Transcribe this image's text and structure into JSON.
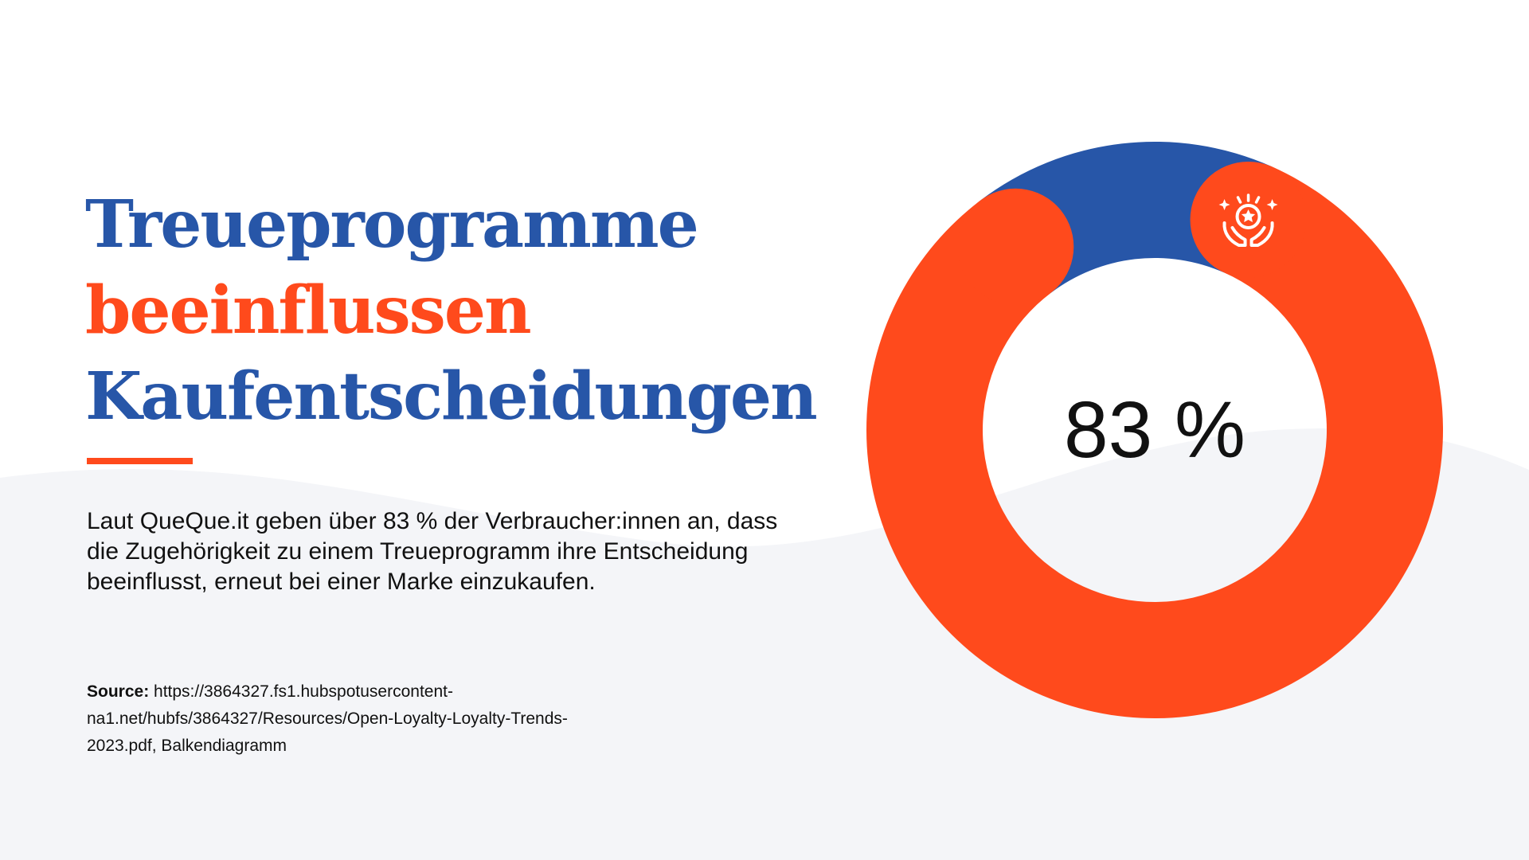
{
  "title": {
    "line1": "Treueprogramme",
    "line2": "beeinflussen",
    "line3": "Kaufentscheidungen"
  },
  "body": "Laut QueQue.it geben über 83 % der Verbraucher:innen an, dass die Zugehörigkeit zu einem Treueprogramm ihre Entscheidung beeinflusst, erneut bei einer Marke einzukaufen.",
  "source": {
    "label": "Source:",
    "text": "https://3864327.fs1.hubspotusercontent-na1.net/hubfs/3864327/Resources/Open-Loyalty-Loyalty-Trends-2023.pdf, Balkendiagramm"
  },
  "colors": {
    "blue": "#2756A8",
    "orange": "#FF4A1C",
    "background": "#FFFFFF",
    "wave": "#F4F5F8",
    "text": "#111111"
  },
  "chart_data": {
    "type": "pie",
    "style": "donut",
    "center_label": "83 %",
    "values": [
      83,
      17
    ],
    "slice_colors": [
      "#FF4A1C",
      "#2756A8"
    ],
    "icon": "hands-holding-star-icon"
  }
}
